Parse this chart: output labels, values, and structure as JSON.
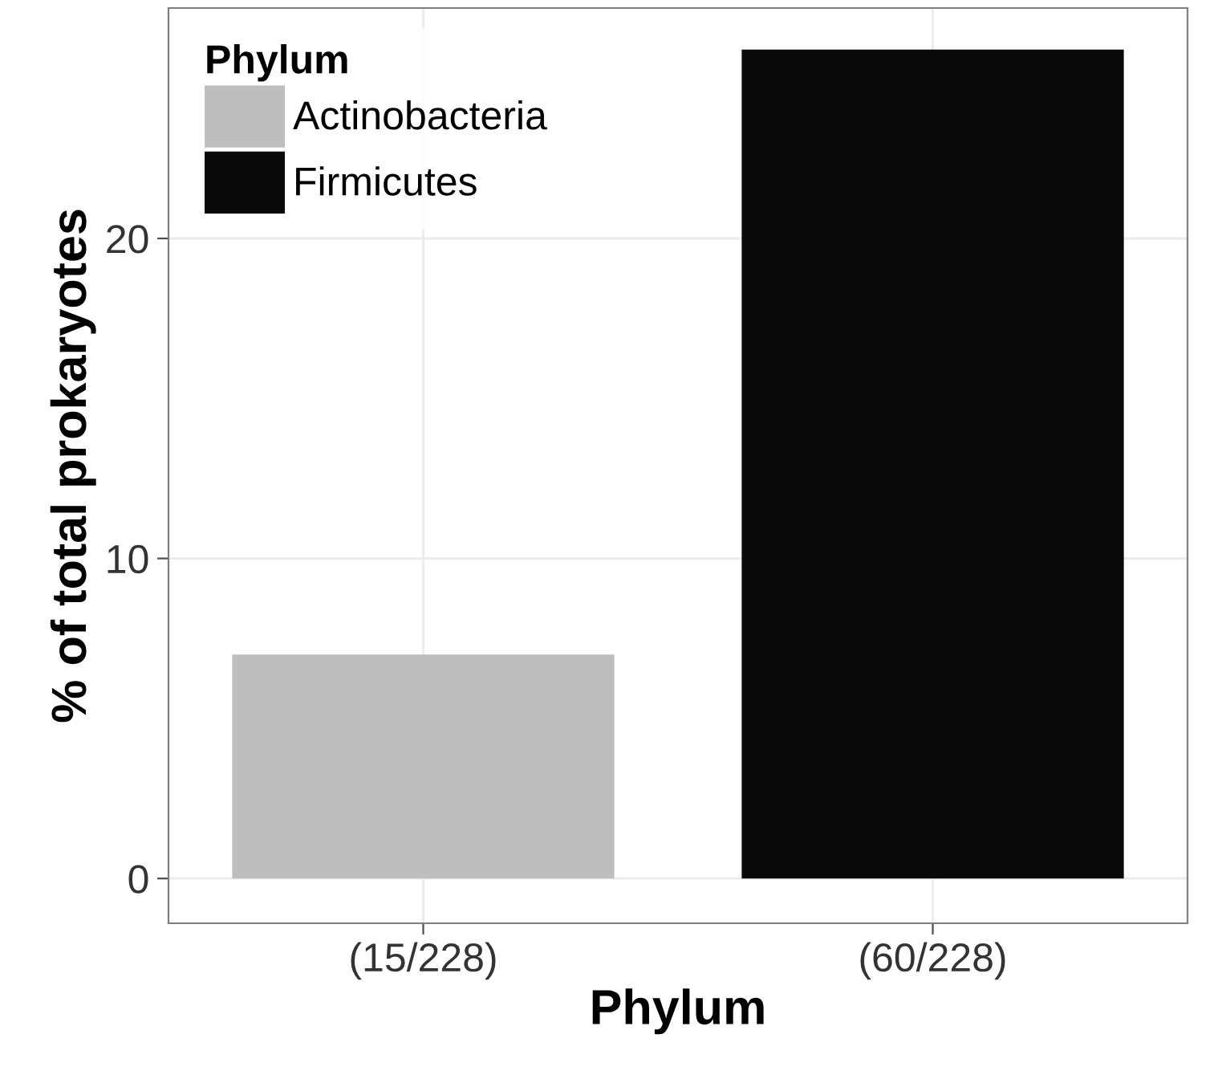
{
  "chart_data": {
    "type": "bar",
    "xlabel": "Phylum",
    "ylabel": "% of total prokaryotes",
    "legend_title": "Phylum",
    "categories": [
      "(15/228)",
      "(60/228)"
    ],
    "series": [
      {
        "name": "Actinobacteria",
        "color": "#bebebe",
        "values": [
          7.0,
          null
        ]
      },
      {
        "name": "Firmicutes",
        "color": "#0a0a0a",
        "values": [
          null,
          25.9
        ]
      }
    ],
    "ylim": [
      -1.4,
      27.2
    ],
    "yticks": [
      0,
      10,
      20
    ],
    "grid": true,
    "legend": "top left"
  }
}
